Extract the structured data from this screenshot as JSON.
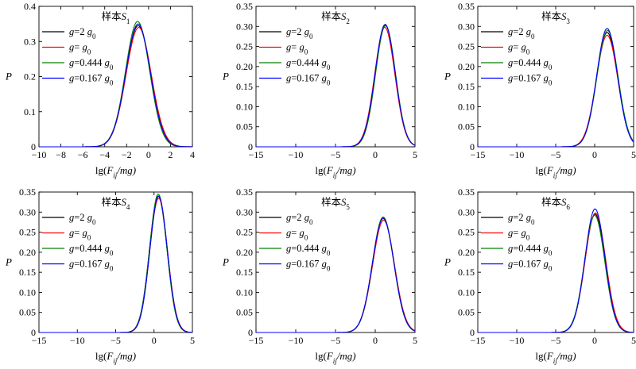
{
  "chart_data": [
    {
      "type": "line",
      "title": "样本S1",
      "title_main": "样本",
      "title_var": "S",
      "title_sub": "1",
      "xlabel": "lg(Fij/mg)",
      "ylabel": "P",
      "xlim": [
        -10,
        4
      ],
      "ylim": [
        0,
        0.4
      ],
      "xticks": [
        "−10",
        "−8",
        "−6",
        "−4",
        "−2",
        "0",
        "2",
        "4"
      ],
      "xtick_values": [
        -10,
        -8,
        -6,
        -4,
        -2,
        0,
        2,
        4
      ],
      "yticks": [
        "0",
        "0.1",
        "0.2",
        "0.3",
        "0.4"
      ],
      "ytick_values": [
        0,
        0.1,
        0.2,
        0.3,
        0.4
      ],
      "legend_position": "upper-left",
      "series": [
        {
          "name": "g=2 g0",
          "color": "#000000",
          "mu": -0.95,
          "sigma": 1.14,
          "peak": 0.345
        },
        {
          "name": "g= g0",
          "color": "#ff0000",
          "mu": -0.9,
          "sigma": 1.15,
          "peak": 0.34
        },
        {
          "name": "g=0.444 g0",
          "color": "#008000",
          "mu": -1.0,
          "sigma": 1.1,
          "peak": 0.357
        },
        {
          "name": "g=0.167 g0",
          "color": "#0000ff",
          "mu": -0.95,
          "sigma": 1.12,
          "peak": 0.35
        }
      ]
    },
    {
      "type": "line",
      "title": "样本S2",
      "title_main": "样本",
      "title_var": "S",
      "title_sub": "2",
      "xlabel": "lg(Fij/mg)",
      "ylabel": "P",
      "xlim": [
        -15,
        5
      ],
      "ylim": [
        0,
        0.35
      ],
      "xticks": [
        "−15",
        "−10",
        "−5",
        "0",
        "5"
      ],
      "xtick_values": [
        -15,
        -10,
        -5,
        0,
        5
      ],
      "yticks": [
        "0",
        "0.05",
        "0.10",
        "0.15",
        "0.20",
        "0.25",
        "0.30",
        "0.35"
      ],
      "ytick_values": [
        0,
        0.05,
        0.1,
        0.15,
        0.2,
        0.25,
        0.3,
        0.35
      ],
      "legend_position": "upper-left",
      "series": [
        {
          "name": "g=2 g0",
          "color": "#000000",
          "mu": 1.25,
          "sigma": 1.25,
          "peak": 0.305
        },
        {
          "name": "g= g0",
          "color": "#ff0000",
          "mu": 1.2,
          "sigma": 1.27,
          "peak": 0.298
        },
        {
          "name": "g=0.444 g0",
          "color": "#008000",
          "mu": 1.3,
          "sigma": 1.25,
          "peak": 0.302
        },
        {
          "name": "g=0.167 g0",
          "color": "#0000ff",
          "mu": 1.25,
          "sigma": 1.26,
          "peak": 0.304
        }
      ]
    },
    {
      "type": "line",
      "title": "样本S3",
      "title_main": "样本",
      "title_var": "S",
      "title_sub": "3",
      "xlabel": "lg(Fij/mg)",
      "ylabel": "P",
      "xlim": [
        -15,
        5
      ],
      "ylim": [
        0,
        0.35
      ],
      "xticks": [
        "−15",
        "−10",
        "−5",
        "0",
        "5"
      ],
      "xtick_values": [
        -15,
        -10,
        -5,
        0,
        5
      ],
      "yticks": [
        "0",
        "0.05",
        "0.10",
        "0.15",
        "0.20",
        "0.25",
        "0.30",
        "0.35"
      ],
      "ytick_values": [
        0,
        0.05,
        0.1,
        0.15,
        0.2,
        0.25,
        0.3,
        0.35
      ],
      "legend_position": "upper-left",
      "series": [
        {
          "name": "g=2 g0",
          "color": "#000000",
          "mu": 1.6,
          "sigma": 1.35,
          "peak": 0.285
        },
        {
          "name": "g= g0",
          "color": "#ff0000",
          "mu": 1.6,
          "sigma": 1.38,
          "peak": 0.278
        },
        {
          "name": "g=0.444 g0",
          "color": "#008000",
          "mu": 1.65,
          "sigma": 1.35,
          "peak": 0.29
        },
        {
          "name": "g=0.167 g0",
          "color": "#0000ff",
          "mu": 1.6,
          "sigma": 1.33,
          "peak": 0.295
        }
      ]
    },
    {
      "type": "line",
      "title": "样本S4",
      "title_main": "样本",
      "title_var": "S",
      "title_sub": "4",
      "xlabel": "lg(Fij/mg)",
      "ylabel": "P",
      "xlim": [
        -15,
        5
      ],
      "ylim": [
        0,
        0.35
      ],
      "xticks": [
        "−15",
        "−10",
        "−5",
        "0",
        "5"
      ],
      "xtick_values": [
        -15,
        -10,
        -5,
        0,
        5
      ],
      "yticks": [
        "0",
        "0.05",
        "0.10",
        "0.15",
        "0.20",
        "0.25",
        "0.30",
        "0.35"
      ],
      "ytick_values": [
        0,
        0.05,
        0.1,
        0.15,
        0.2,
        0.25,
        0.3,
        0.35
      ],
      "legend_position": "upper-left",
      "series": [
        {
          "name": "g=2 g0",
          "color": "#000000",
          "mu": 0.55,
          "sigma": 1.15,
          "peak": 0.34
        },
        {
          "name": "g= g0",
          "color": "#ff0000",
          "mu": 0.6,
          "sigma": 1.16,
          "peak": 0.335
        },
        {
          "name": "g=0.444 g0",
          "color": "#008000",
          "mu": 0.55,
          "sigma": 1.13,
          "peak": 0.345
        },
        {
          "name": "g=0.167 g0",
          "color": "#0000ff",
          "mu": 0.6,
          "sigma": 1.14,
          "peak": 0.34
        }
      ]
    },
    {
      "type": "line",
      "title": "样本S5",
      "title_main": "样本",
      "title_var": "S",
      "title_sub": "5",
      "xlabel": "lg(Fij/mg)",
      "ylabel": "P",
      "xlim": [
        -15,
        5
      ],
      "ylim": [
        0,
        0.35
      ],
      "xticks": [
        "−15",
        "−10",
        "−5",
        "0",
        "5"
      ],
      "xtick_values": [
        -15,
        -10,
        -5,
        0,
        5
      ],
      "yticks": [
        "0",
        "0.05",
        "0.10",
        "0.15",
        "0.20",
        "0.25",
        "0.30",
        "0.35"
      ],
      "ytick_values": [
        0,
        0.05,
        0.1,
        0.15,
        0.2,
        0.25,
        0.3,
        0.35
      ],
      "legend_position": "upper-left",
      "series": [
        {
          "name": "g=2 g0",
          "color": "#000000",
          "mu": 1.0,
          "sigma": 1.35,
          "peak": 0.287
        },
        {
          "name": "g= g0",
          "color": "#ff0000",
          "mu": 1.05,
          "sigma": 1.37,
          "peak": 0.28
        },
        {
          "name": "g=0.444 g0",
          "color": "#008000",
          "mu": 1.0,
          "sigma": 1.34,
          "peak": 0.288
        },
        {
          "name": "g=0.167 g0",
          "color": "#0000ff",
          "mu": 1.0,
          "sigma": 1.36,
          "peak": 0.284
        }
      ]
    },
    {
      "type": "line",
      "title": "样本S6",
      "title_main": "样本",
      "title_var": "S",
      "title_sub": "6",
      "xlabel": "lg(Fij/mg)",
      "ylabel": "P",
      "xlim": [
        -15,
        5
      ],
      "ylim": [
        0,
        0.35
      ],
      "xticks": [
        "−15",
        "−10",
        "−5",
        "0",
        "5"
      ],
      "xtick_values": [
        -15,
        -10,
        -5,
        0,
        5
      ],
      "yticks": [
        "0",
        "0.05",
        "0.10",
        "0.15",
        "0.20",
        "0.25",
        "0.30",
        "0.35"
      ],
      "ytick_values": [
        0,
        0.05,
        0.1,
        0.15,
        0.2,
        0.25,
        0.3,
        0.35
      ],
      "legend_position": "upper-left",
      "series": [
        {
          "name": "g=2 g0",
          "color": "#000000",
          "mu": 0.05,
          "sigma": 1.3,
          "peak": 0.295
        },
        {
          "name": "g= g0",
          "color": "#ff0000",
          "mu": 0.1,
          "sigma": 1.32,
          "peak": 0.298
        },
        {
          "name": "g=0.444 g0",
          "color": "#008000",
          "mu": 0.0,
          "sigma": 1.3,
          "peak": 0.292
        },
        {
          "name": "g=0.167 g0",
          "color": "#0000ff",
          "mu": 0.05,
          "sigma": 1.28,
          "peak": 0.308
        }
      ]
    }
  ]
}
